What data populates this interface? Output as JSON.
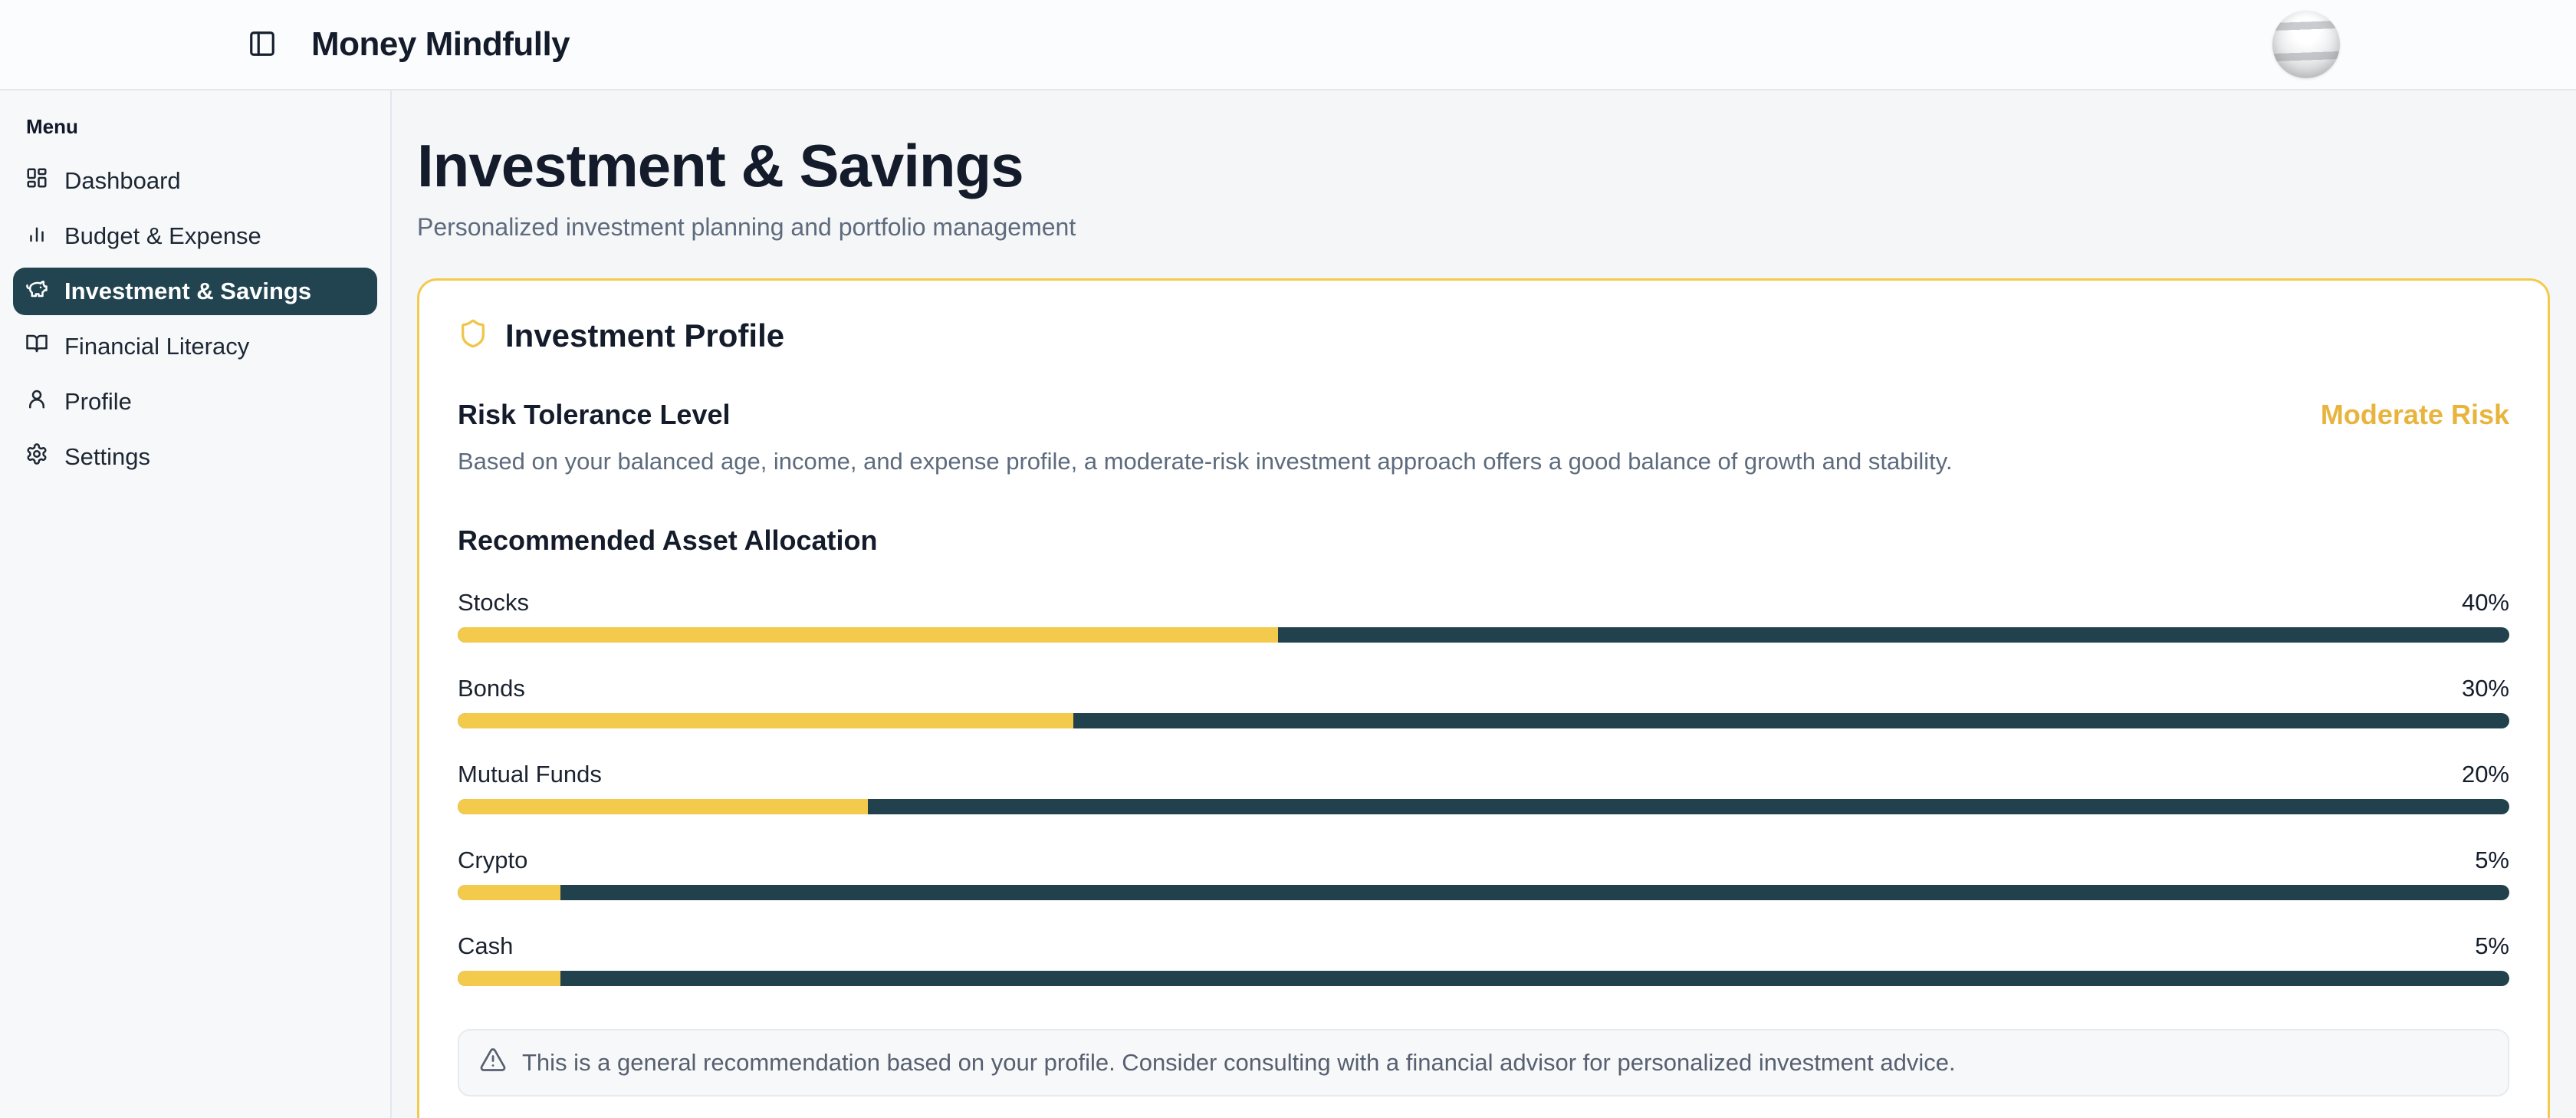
{
  "header": {
    "brand": "Money Mindfully"
  },
  "sidebar": {
    "section_label": "Menu",
    "items": [
      {
        "label": "Dashboard",
        "icon": "dashboard-grid-icon",
        "active": false
      },
      {
        "label": "Budget & Expense",
        "icon": "bar-chart-icon",
        "active": false
      },
      {
        "label": "Investment & Savings",
        "icon": "piggy-bank-icon",
        "active": true
      },
      {
        "label": "Financial Literacy",
        "icon": "open-book-icon",
        "active": false
      },
      {
        "label": "Profile",
        "icon": "user-icon",
        "active": false
      },
      {
        "label": "Settings",
        "icon": "gear-icon",
        "active": false
      }
    ]
  },
  "page": {
    "title": "Investment & Savings",
    "subtitle": "Personalized investment planning and portfolio management"
  },
  "card": {
    "title": "Investment Profile",
    "risk_section": {
      "heading": "Risk Tolerance Level",
      "badge": "Moderate Risk",
      "description": "Based on your balanced age, income, and expense profile, a moderate-risk investment approach offers a good balance of growth and stability."
    },
    "allocation": {
      "heading": "Recommended Asset Allocation",
      "items": [
        {
          "label": "Stocks",
          "percent": 40,
          "percent_label": "40%"
        },
        {
          "label": "Bonds",
          "percent": 30,
          "percent_label": "30%"
        },
        {
          "label": "Mutual Funds",
          "percent": 20,
          "percent_label": "20%"
        },
        {
          "label": "Crypto",
          "percent": 5,
          "percent_label": "5%"
        },
        {
          "label": "Cash",
          "percent": 5,
          "percent_label": "5%"
        }
      ]
    },
    "note": "This is a general recommendation based on your profile. Consider consulting with a financial advisor for personalized investment advice."
  },
  "colors": {
    "accent_gold_border": "#f2ca4e",
    "badge_gold": "#e9b43e",
    "bar_fill": "#f3ca4b",
    "bar_track": "#21424d",
    "active_item_bg": "#214450",
    "dark_text": "#141c2b",
    "muted_text": "#5d6b7d"
  }
}
